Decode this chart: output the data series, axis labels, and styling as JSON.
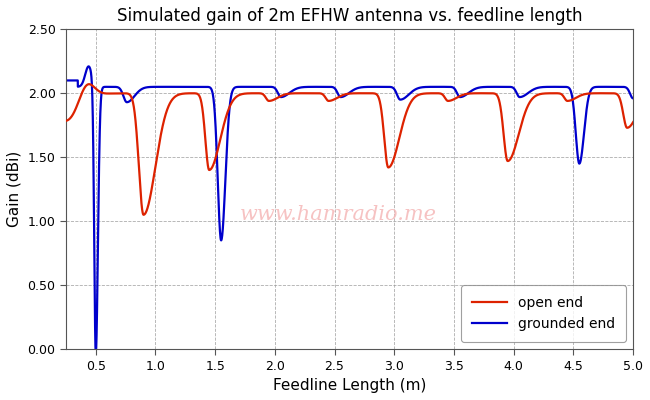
{
  "title": "Simulated gain of 2m EFHW antenna vs. feedline length",
  "xlabel": "Feedline Length (m)",
  "ylabel": "Gain (dBi)",
  "xlim": [
    0.25,
    5.0
  ],
  "ylim": [
    0.0,
    2.5
  ],
  "xticks": [
    0.5,
    1.0,
    1.5,
    2.0,
    2.5,
    3.0,
    3.5,
    4.0,
    4.5,
    5.0
  ],
  "yticks": [
    0.0,
    0.5,
    1.0,
    1.5,
    2.0,
    2.5
  ],
  "open_end_color": "#dd2200",
  "grounded_end_color": "#0000cc",
  "legend_labels": [
    "open end",
    "grounded end"
  ],
  "watermark": "www.hamradio.me",
  "background_color": "#ffffff",
  "plot_bg_color": "#ffffff",
  "grid_color": "#999999",
  "line_width": 1.6,
  "period": 0.5,
  "red_dip_start": 0.9,
  "blue_first_dip": 0.5,
  "blue_second_big_dip": 1.55
}
